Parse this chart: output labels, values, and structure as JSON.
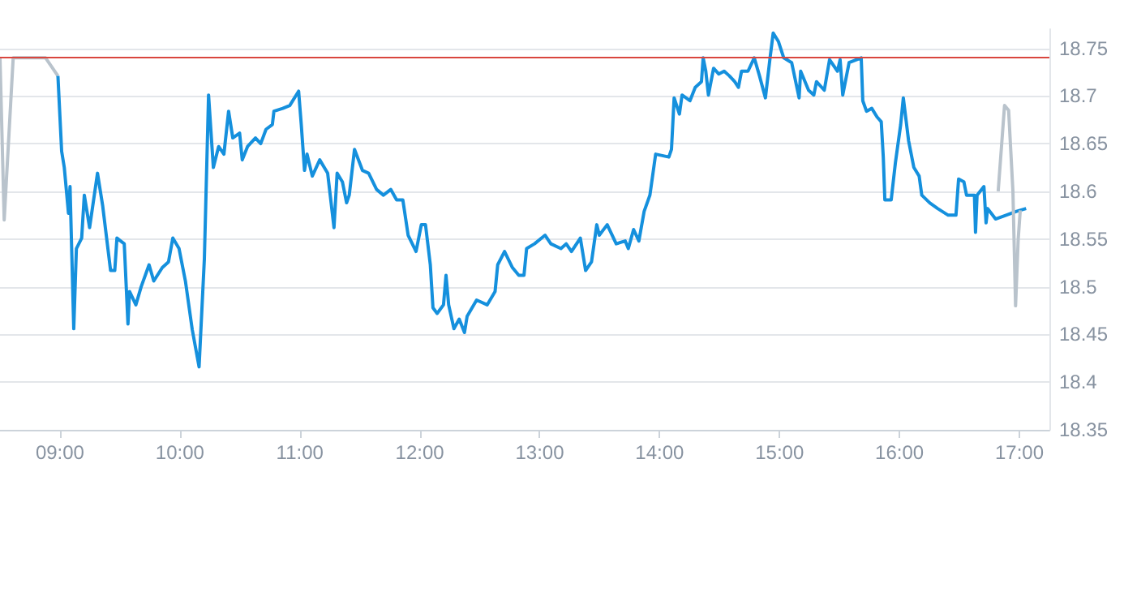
{
  "chart_data": {
    "type": "line",
    "marker": "none",
    "grid": "y",
    "xlim": [
      8.5,
      17.25
    ],
    "xticks": [
      {
        "value": 9,
        "label": "09:00"
      },
      {
        "value": 10,
        "label": "10:00"
      },
      {
        "value": 11,
        "label": "11:00"
      },
      {
        "value": 12,
        "label": "12:00"
      },
      {
        "value": 13,
        "label": "13:00"
      },
      {
        "value": 14,
        "label": "14:00"
      },
      {
        "value": 15,
        "label": "15:00"
      },
      {
        "value": 16,
        "label": "16:00"
      },
      {
        "value": 17,
        "label": "17:00"
      }
    ],
    "ylim": [
      18.35,
      18.77
    ],
    "yticks": [
      18.35,
      18.4,
      18.45,
      18.5,
      18.55,
      18.6,
      18.65,
      18.7,
      18.75
    ],
    "ref_lines": [
      {
        "axis": "y",
        "value": 18.74,
        "color": "#d9463e"
      }
    ],
    "series": [
      {
        "color": "#b9c3cc",
        "x": [
          8.5,
          8.535,
          8.61,
          8.88,
          8.983
        ],
        "values": [
          18.74,
          18.57,
          18.74,
          18.74,
          18.721
        ]
      },
      {
        "color": "#1590dd",
        "x": [
          8.983,
          9.014,
          9.036,
          9.071,
          9.084,
          9.115,
          9.137,
          9.181,
          9.203,
          9.247,
          9.313,
          9.356,
          9.422,
          9.457,
          9.475,
          9.536,
          9.567,
          9.58,
          9.633,
          9.677,
          9.743,
          9.782,
          9.853,
          9.905,
          9.941,
          9.993,
          10.046,
          10.103,
          10.16,
          10.204,
          10.239,
          10.279,
          10.323,
          10.367,
          10.406,
          10.441,
          10.498,
          10.52,
          10.564,
          10.63,
          10.674,
          10.718,
          10.771,
          10.784,
          10.858,
          10.916,
          10.99,
          11.012,
          11.039,
          11.06,
          11.104,
          11.166,
          11.232,
          11.285,
          11.311,
          11.355,
          11.39,
          11.412,
          11.456,
          11.522,
          11.574,
          11.64,
          11.697,
          11.758,
          11.807,
          11.859,
          11.903,
          11.969,
          12.013,
          12.048,
          12.088,
          12.11,
          12.145,
          12.198,
          12.219,
          12.241,
          12.285,
          12.329,
          12.373,
          12.395,
          12.474,
          12.562,
          12.628,
          12.65,
          12.707,
          12.773,
          12.826,
          12.869,
          12.891,
          12.957,
          13.045,
          13.093,
          13.177,
          13.221,
          13.265,
          13.339,
          13.383,
          13.432,
          13.476,
          13.497,
          13.563,
          13.638,
          13.713,
          13.739,
          13.783,
          13.827,
          13.871,
          13.919,
          13.967,
          14.077,
          14.099,
          14.121,
          14.165,
          14.187,
          14.253,
          14.297,
          14.349,
          14.363,
          14.385,
          14.407,
          14.45,
          14.494,
          14.538,
          14.582,
          14.626,
          14.657,
          14.683,
          14.737,
          14.789,
          14.833,
          14.882,
          14.921,
          14.947,
          14.991,
          15.035,
          15.101,
          15.163,
          15.176,
          15.242,
          15.286,
          15.308,
          15.373,
          15.417,
          15.483,
          15.505,
          15.527,
          15.58,
          15.681,
          15.694,
          15.725,
          15.769,
          15.813,
          15.848,
          15.865,
          15.878,
          15.931,
          15.966,
          16.01,
          16.032,
          16.076,
          16.12,
          16.164,
          16.186,
          16.252,
          16.318,
          16.406,
          16.471,
          16.493,
          16.537,
          16.559,
          16.625,
          16.634,
          16.647,
          16.704,
          16.722,
          16.735,
          16.801,
          16.889,
          16.976,
          17.056
        ],
        "values": [
          18.721,
          18.642,
          18.625,
          18.577,
          18.605,
          18.456,
          18.54,
          18.551,
          18.596,
          18.562,
          18.619,
          18.585,
          18.517,
          18.517,
          18.551,
          18.545,
          18.461,
          18.495,
          18.481,
          18.5,
          18.523,
          18.506,
          18.52,
          18.526,
          18.551,
          18.54,
          18.506,
          18.455,
          18.416,
          18.529,
          18.701,
          18.625,
          18.647,
          18.639,
          18.684,
          18.656,
          18.661,
          18.633,
          18.647,
          18.656,
          18.65,
          18.665,
          18.67,
          18.684,
          18.687,
          18.69,
          18.705,
          18.67,
          18.622,
          18.639,
          18.616,
          18.633,
          18.619,
          18.562,
          18.619,
          18.61,
          18.588,
          18.596,
          18.644,
          18.622,
          18.619,
          18.602,
          18.596,
          18.602,
          18.591,
          18.591,
          18.554,
          18.537,
          18.565,
          18.565,
          18.523,
          18.478,
          18.472,
          18.481,
          18.512,
          18.481,
          18.456,
          18.466,
          18.452,
          18.469,
          18.486,
          18.481,
          18.495,
          18.523,
          18.537,
          18.52,
          18.512,
          18.512,
          18.54,
          18.545,
          18.554,
          18.545,
          18.54,
          18.545,
          18.537,
          18.551,
          18.517,
          18.526,
          18.565,
          18.554,
          18.565,
          18.545,
          18.548,
          18.54,
          18.56,
          18.548,
          18.579,
          18.596,
          18.639,
          18.636,
          18.644,
          18.698,
          18.681,
          18.701,
          18.695,
          18.709,
          18.715,
          18.74,
          18.726,
          18.701,
          18.729,
          18.723,
          18.726,
          18.721,
          18.715,
          18.709,
          18.726,
          18.726,
          18.74,
          18.721,
          18.698,
          18.74,
          18.766,
          18.757,
          18.74,
          18.735,
          18.698,
          18.726,
          18.706,
          18.701,
          18.715,
          18.706,
          18.738,
          18.726,
          18.738,
          18.701,
          18.735,
          18.74,
          18.695,
          18.684,
          18.687,
          18.678,
          18.673,
          18.636,
          18.591,
          18.591,
          18.63,
          18.67,
          18.698,
          18.653,
          18.625,
          18.616,
          18.596,
          18.588,
          18.582,
          18.575,
          18.575,
          18.613,
          18.61,
          18.596,
          18.596,
          18.557,
          18.596,
          18.605,
          18.567,
          18.582,
          18.571,
          18.575,
          18.579,
          18.582
        ]
      },
      {
        "color": "#b9c3cc",
        "x": [
          16.823,
          16.876,
          16.91,
          16.946,
          16.968,
          16.99,
          17.007
        ],
        "values": [
          18.6,
          18.69,
          18.685,
          18.6,
          18.48,
          18.55,
          18.58
        ]
      }
    ]
  }
}
